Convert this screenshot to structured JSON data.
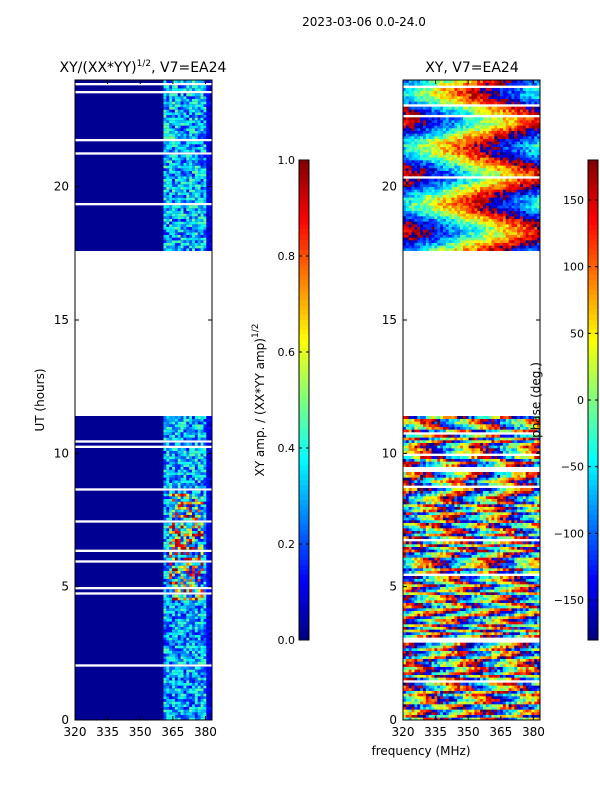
{
  "figure": {
    "suptitle": "2023-03-06 0.0-24.0",
    "shared_xlabel": "frequency (MHz)"
  },
  "colors": {
    "jet": [
      "#00007f",
      "#0000ff",
      "#007fff",
      "#00ffff",
      "#7fff7f",
      "#ffff00",
      "#ff7f00",
      "#ff0000",
      "#7f0000"
    ],
    "background": "#ffffff",
    "axis": "#000000"
  },
  "chart_data": [
    {
      "type": "heatmap",
      "title_main": "XY/(XX*YY)",
      "title_exp": "1/2",
      "title_suffix": ", V7=EA24",
      "xlabel": "",
      "ylabel": "UT (hours)",
      "xlim": [
        320,
        383
      ],
      "ylim": [
        0,
        24
      ],
      "xticks": [
        320,
        335,
        350,
        365,
        380
      ],
      "yticks": [
        0,
        5,
        10,
        15,
        20
      ],
      "data_gaps_hours": [
        [
          11.4,
          17.6
        ]
      ],
      "colorbar": {
        "label_main": "XY amp. / (XX*YY amp)",
        "label_exp": "1/2",
        "min": 0.0,
        "max": 1.0,
        "ticks": [
          "0.0",
          "0.2",
          "0.4",
          "0.6",
          "0.8",
          "1.0"
        ],
        "tick_values": [
          0.0,
          0.2,
          0.4,
          0.6,
          0.8,
          1.0
        ]
      }
    },
    {
      "type": "heatmap",
      "title_main": "XY, V7=EA24",
      "xlabel": "frequency (MHz)",
      "ylabel": "",
      "xlim": [
        320,
        383
      ],
      "ylim": [
        0,
        24
      ],
      "xticks": [
        320,
        335,
        350,
        365,
        380
      ],
      "yticks": [
        0,
        5,
        10,
        15,
        20
      ],
      "data_gaps_hours": [
        [
          11.4,
          17.6
        ]
      ],
      "colorbar": {
        "label_main": "phase (deg.)",
        "min": -180,
        "max": 180,
        "ticks": [
          "−150",
          "−100",
          "−50",
          "0",
          "50",
          "100",
          "150"
        ],
        "tick_values": [
          -150,
          -100,
          -50,
          0,
          50,
          100,
          150
        ]
      }
    }
  ]
}
